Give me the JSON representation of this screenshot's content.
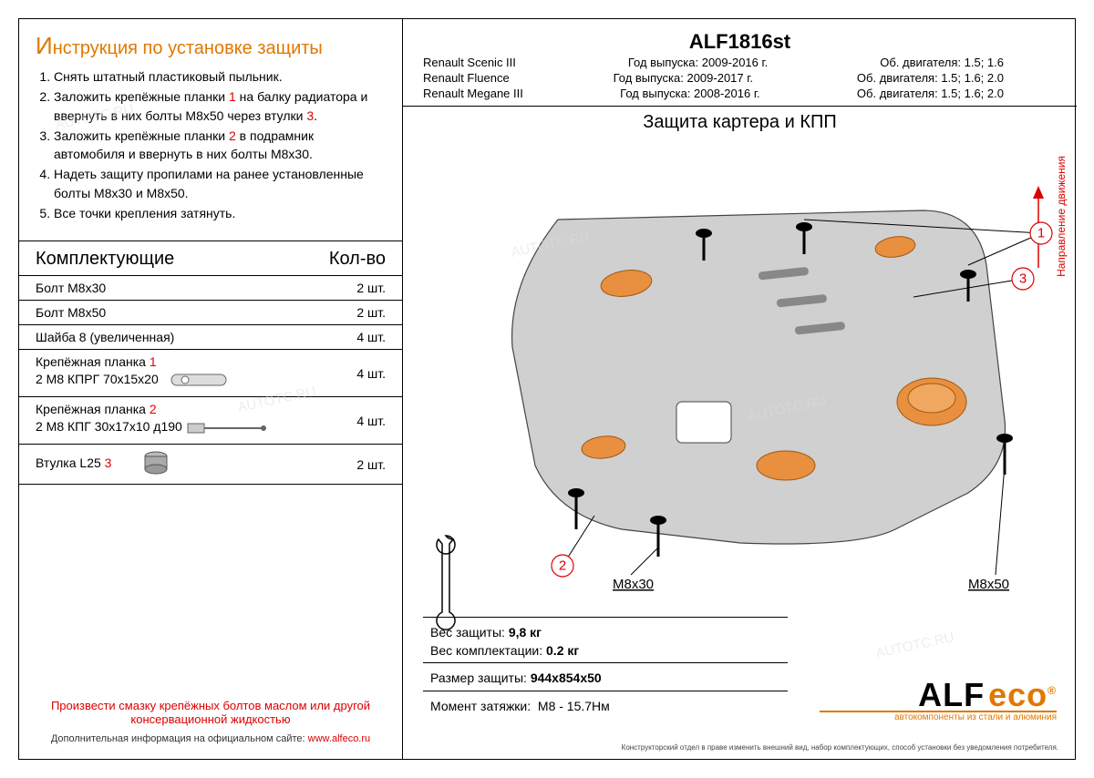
{
  "left": {
    "title": "Инструкция по установке защиты",
    "steps": [
      {
        "t": "Снять штатный пластиковый пыльник."
      },
      {
        "t": "Заложить крепёжные планки ",
        "r": "1",
        "t2": " на балку радиатора и ввернуть в них болты M8x50 через втулки ",
        "r2": "3",
        "t3": "."
      },
      {
        "t": "Заложить крепёжные планки ",
        "r": "2",
        "t2": " в подрамник автомобиля и ввернуть в них болты M8x30."
      },
      {
        "t": "Надеть защиту пропилами на ранее установленные болты M8x30 и M8x50."
      },
      {
        "t": "Все точки крепления затянуть."
      }
    ],
    "comp_head_l": "Комплектующие",
    "comp_head_r": "Кол-во",
    "components": [
      {
        "name": "Болт M8x30",
        "qty": "2 шт."
      },
      {
        "name": "Болт M8x50",
        "qty": "2 шт."
      },
      {
        "name": "Шайба 8 (увеличенная)",
        "qty": "4 шт."
      },
      {
        "name": "Крепёжная планка ",
        "r": "1",
        "sub": "2 M8 КПРГ 70x15x20",
        "qty": "4 шт.",
        "drawing": "planka1"
      },
      {
        "name": "Крепёжная планка ",
        "r": "2",
        "sub": "2 M8 КПГ 30x17x10 д190",
        "qty": "4 шт.",
        "drawing": "planka2"
      },
      {
        "name": "Втулка L25 ",
        "r": "3",
        "qty": "2 шт.",
        "drawing": "vtulka"
      }
    ],
    "lubricate": "Произвести смазку крепёжных болтов маслом или другой консервационной жидкостью",
    "more_info_l": "Дополнительная информация на официальном сайте: ",
    "more_info_url": "www.alfeco.ru"
  },
  "right": {
    "code": "ALF1816st",
    "models": [
      {
        "name": "Renault Scenic III",
        "year": "Год выпуска: 2009-2016 г.",
        "eng": "Об. двигателя: 1.5; 1.6"
      },
      {
        "name": "Renault Fluence",
        "year": "Год выпуска: 2009-2017 г.",
        "eng": "Об. двигателя: 1.5; 1.6; 2.0"
      },
      {
        "name": "Renault Megane III",
        "year": "Год выпуска: 2008-2016 г.",
        "eng": "Об. двигателя: 1.5; 1.6; 2.0"
      }
    ],
    "diagram_title": "Защита картера и КПП",
    "direction": "Направление движения",
    "bolt_labels": {
      "l": "M8x30",
      "r": "M8x50"
    },
    "callouts": [
      "1",
      "2",
      "3"
    ],
    "specs": {
      "weight_protect_l": "Вес защиты:",
      "weight_protect_v": "9,8 кг",
      "weight_kit_l": "Вес комплектации:",
      "weight_kit_v": "0.2 кг",
      "size_l": "Размер защиты:",
      "size_v": "944x854x50",
      "torque_l": "Момент затяжки:",
      "torque_v": "M8 - 15.7Нм"
    },
    "logo": {
      "a": "ALF",
      "e": "eco",
      "reg": "®",
      "sub": "автокомпоненты из стали и алюминия"
    },
    "disclaimer": "Конструкторский отдел в праве изменить внешний вид, набор комплектующих, способ установки без уведомления потребителя."
  },
  "colors": {
    "accent": "#e07800",
    "red": "#d00000",
    "plate_fill": "#d0d0d0",
    "plate_stroke": "#444444",
    "orange_part": "#e89040",
    "black": "#000000"
  },
  "watermark": "AUTOTC.RU"
}
